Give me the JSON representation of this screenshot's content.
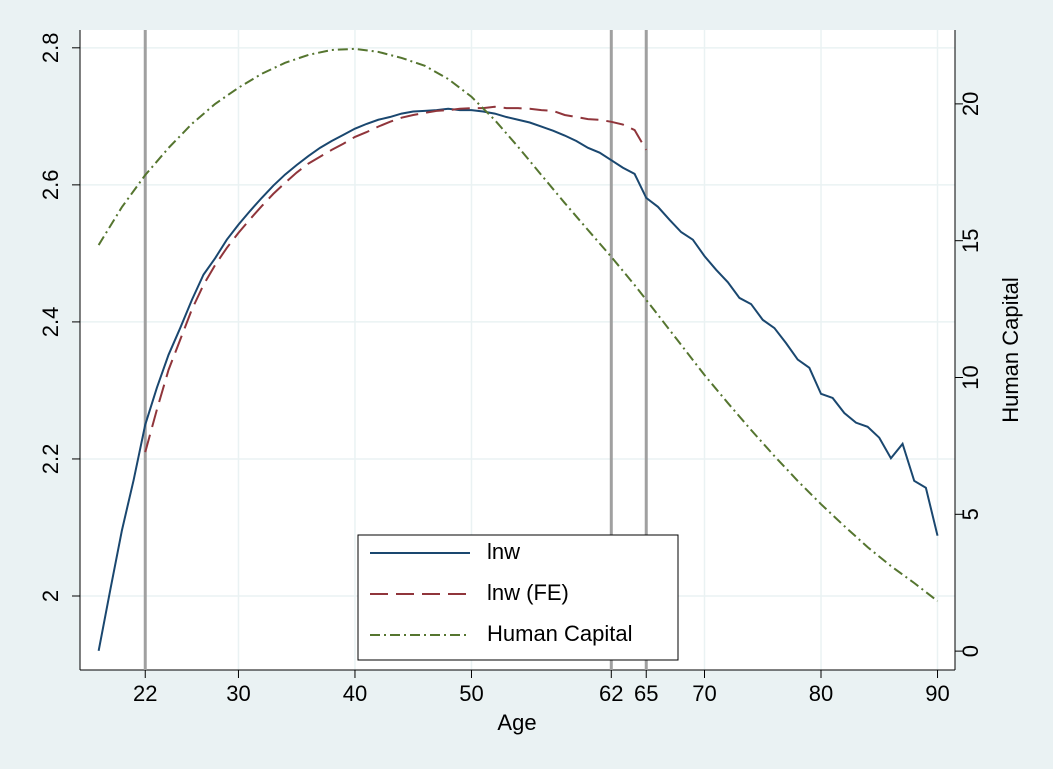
{
  "chart_data": {
    "type": "line",
    "xlabel": "Age",
    "y2label": "Human Capital",
    "xlim": [
      16.4,
      91.5
    ],
    "ylim": [
      1.892,
      2.826
    ],
    "y2lim": [
      -0.69,
      22.7
    ],
    "xticks": [
      22,
      30,
      40,
      50,
      62,
      65,
      70,
      80,
      90
    ],
    "yticks": [
      2,
      2.2,
      2.4,
      2.6,
      2.8
    ],
    "y2ticks": [
      0,
      5,
      10,
      15,
      20
    ],
    "xlines": [
      22,
      62,
      65
    ],
    "xline_color": "#a0a0a0",
    "grid": true,
    "legend": "bottom-center",
    "series": [
      {
        "name": "lnw",
        "color": "#1a476f",
        "dash": "solid",
        "x": [
          18,
          19,
          20,
          21,
          22,
          23,
          24,
          25,
          26,
          27,
          28,
          29,
          30,
          31,
          32,
          33,
          34,
          35,
          36,
          37,
          38,
          39,
          40,
          41,
          42,
          43,
          44,
          45,
          46,
          47,
          48,
          49,
          50,
          51,
          52,
          53,
          54,
          55,
          56,
          57,
          58,
          59,
          60,
          61,
          62,
          63,
          64,
          65,
          66,
          67,
          68,
          69,
          70,
          71,
          72,
          73,
          74,
          75,
          76,
          77,
          78,
          79,
          80,
          81,
          82,
          83,
          84,
          85,
          86,
          87,
          88,
          89,
          90
        ],
        "values": [
          1.92,
          2.009,
          2.096,
          2.169,
          2.25,
          2.304,
          2.352,
          2.391,
          2.432,
          2.469,
          2.493,
          2.52,
          2.542,
          2.562,
          2.581,
          2.599,
          2.615,
          2.629,
          2.642,
          2.654,
          2.664,
          2.673,
          2.682,
          2.689,
          2.695,
          2.699,
          2.704,
          2.707,
          2.708,
          2.709,
          2.711,
          2.709,
          2.709,
          2.707,
          2.704,
          2.699,
          2.695,
          2.691,
          2.685,
          2.679,
          2.672,
          2.664,
          2.654,
          2.647,
          2.636,
          2.625,
          2.616,
          2.581,
          2.568,
          2.549,
          2.531,
          2.52,
          2.496,
          2.476,
          2.458,
          2.435,
          2.426,
          2.403,
          2.391,
          2.369,
          2.345,
          2.333,
          2.295,
          2.289,
          2.267,
          2.253,
          2.247,
          2.231,
          2.201,
          2.222,
          2.168,
          2.158,
          2.088
        ]
      },
      {
        "name": "lnw (FE)",
        "color": "#90353b",
        "dash": "dashed",
        "x": [
          22,
          23,
          24,
          25,
          26,
          27,
          28,
          29,
          30,
          31,
          32,
          33,
          34,
          35,
          36,
          37,
          38,
          39,
          40,
          41,
          42,
          43,
          44,
          45,
          46,
          47,
          48,
          49,
          50,
          51,
          52,
          53,
          54,
          55,
          56,
          57,
          58,
          59,
          60,
          61,
          62,
          63,
          64,
          65
        ],
        "values": [
          2.21,
          2.272,
          2.33,
          2.374,
          2.418,
          2.454,
          2.483,
          2.508,
          2.53,
          2.55,
          2.569,
          2.587,
          2.603,
          2.618,
          2.631,
          2.641,
          2.651,
          2.66,
          2.67,
          2.677,
          2.685,
          2.692,
          2.698,
          2.702,
          2.705,
          2.708,
          2.709,
          2.711,
          2.712,
          2.712,
          2.714,
          2.712,
          2.712,
          2.711,
          2.709,
          2.708,
          2.702,
          2.699,
          2.696,
          2.695,
          2.692,
          2.688,
          2.68,
          2.651
        ]
      },
      {
        "name": "Human Capital",
        "color": "#55752f",
        "dash": "dashdot",
        "axis": "y2",
        "x": [
          18,
          20,
          22,
          24,
          26,
          28,
          30,
          32,
          34,
          36,
          38,
          40,
          42,
          44,
          46,
          48,
          50,
          52,
          54,
          56,
          58,
          60,
          62,
          64,
          66,
          68,
          70,
          72,
          74,
          76,
          78,
          80,
          82,
          84,
          86,
          88,
          90
        ],
        "values": [
          14.84,
          16.23,
          17.4,
          18.39,
          19.27,
          20.0,
          20.59,
          21.1,
          21.5,
          21.79,
          21.97,
          22.01,
          21.9,
          21.68,
          21.39,
          20.91,
          20.26,
          19.41,
          18.43,
          17.4,
          16.38,
          15.39,
          14.41,
          13.38,
          12.29,
          11.19,
          10.09,
          9.07,
          8.08,
          7.13,
          6.22,
          5.37,
          4.57,
          3.8,
          3.11,
          2.49,
          1.83
        ]
      }
    ]
  }
}
